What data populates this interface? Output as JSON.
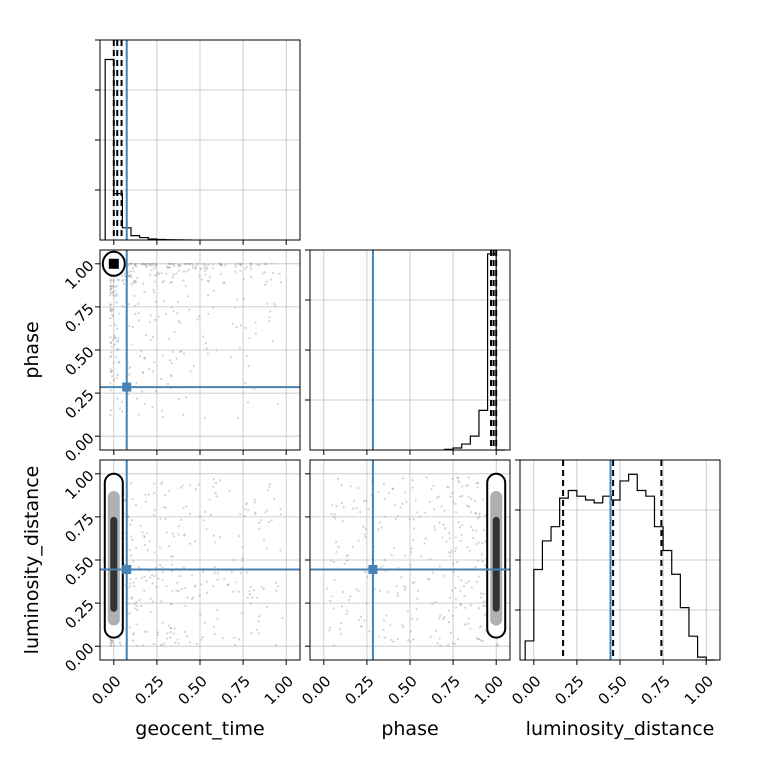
{
  "chart_data": {
    "type": "corner",
    "parameters": [
      "geocent_time",
      "phase",
      "luminosity_distance"
    ],
    "range": [
      -0.08,
      1.08
    ],
    "tick_values": [
      0.0,
      0.25,
      0.5,
      0.75,
      1.0
    ],
    "tick_labels": [
      "0.00",
      "0.25",
      "0.50",
      "0.75",
      "1.00"
    ],
    "truths": {
      "geocent_time": 0.075,
      "phase": 0.285,
      "luminosity_distance": 0.445
    },
    "colors": {
      "truth": "#4682b4",
      "hist": "#000000",
      "grid": "#c0c0c0",
      "scatter": "#808080"
    },
    "grid": true,
    "histograms": [
      {
        "parameter": "geocent_time",
        "bin_edges": [
          -0.05,
          0.0,
          0.05,
          0.1,
          0.15,
          0.2,
          0.25,
          0.3,
          0.35,
          0.4,
          0.45
        ],
        "counts": [
          3700,
          950,
          250,
          90,
          50,
          20,
          10,
          5,
          3,
          1
        ],
        "ymax": 4100,
        "quantiles": [
          0.0,
          0.02,
          0.045
        ]
      },
      {
        "parameter": "phase",
        "bin_edges": [
          0.7,
          0.75,
          0.8,
          0.85,
          0.9,
          0.95,
          1.0,
          1.05
        ],
        "counts": [
          3,
          10,
          30,
          70,
          200,
          990,
          0
        ],
        "ymax": 1010,
        "quantiles": [
          0.97,
          0.985,
          1.0
        ]
      },
      {
        "parameter": "luminosity_distance",
        "bin_edges": [
          -0.05,
          0.0,
          0.05,
          0.1,
          0.15,
          0.2,
          0.25,
          0.3,
          0.35,
          0.4,
          0.45,
          0.5,
          0.55,
          0.6,
          0.65,
          0.7,
          0.75,
          0.8,
          0.85,
          0.9,
          0.95,
          1.0,
          1.05
        ],
        "counts": [
          20,
          95,
          125,
          140,
          170,
          178,
          172,
          168,
          165,
          172,
          168,
          188,
          195,
          178,
          172,
          140,
          115,
          90,
          55,
          25,
          3,
          0
        ],
        "ymax": 210,
        "quantiles": [
          0.17,
          0.46,
          0.74
        ]
      }
    ]
  }
}
